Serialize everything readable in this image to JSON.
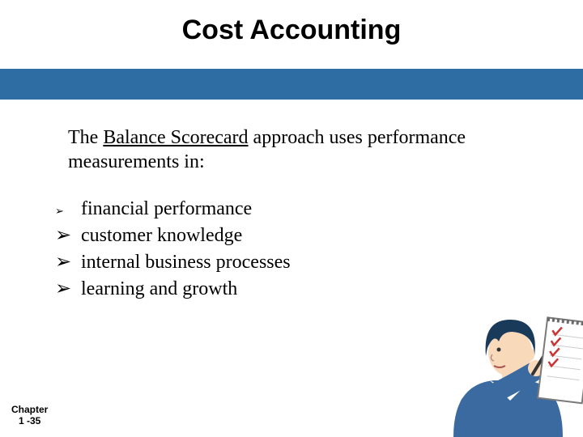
{
  "title": {
    "text": "Cost Accounting",
    "fontsize": 34,
    "color": "#000000"
  },
  "bar": {
    "color": "#2e6da4",
    "height": 38
  },
  "intro": {
    "prefix": "The ",
    "underlined": "Balance Scorecard",
    "suffix": " approach uses performance measurements in:",
    "fontsize": 24,
    "color": "#000000"
  },
  "bullets": {
    "glyph": "➢",
    "fontsize": 24,
    "color": "#000000",
    "items": [
      {
        "text": "financial performance",
        "glyph_margin_small": true
      },
      {
        "text": "customer knowledge",
        "glyph_margin_small": false
      },
      {
        "text": "internal business processes",
        "glyph_margin_small": false
      },
      {
        "text": "learning and growth",
        "glyph_margin_small": false
      }
    ]
  },
  "footer": {
    "line1": "Chapter",
    "line2": "1 -35",
    "fontsize": 12,
    "color": "#000000"
  },
  "illustration": {
    "hair_color": "#1a3a5a",
    "skin_color": "#f8d9b9",
    "shirt_color": "#3a6aa0",
    "collar_color": "#ffffff",
    "notepad_fill": "#ffffff",
    "notepad_border": "#7a7a7a",
    "binding_color": "#6b6b6b",
    "check_color": "#cc3333",
    "pen_color": "#333333",
    "line_color": "#cccccc"
  }
}
